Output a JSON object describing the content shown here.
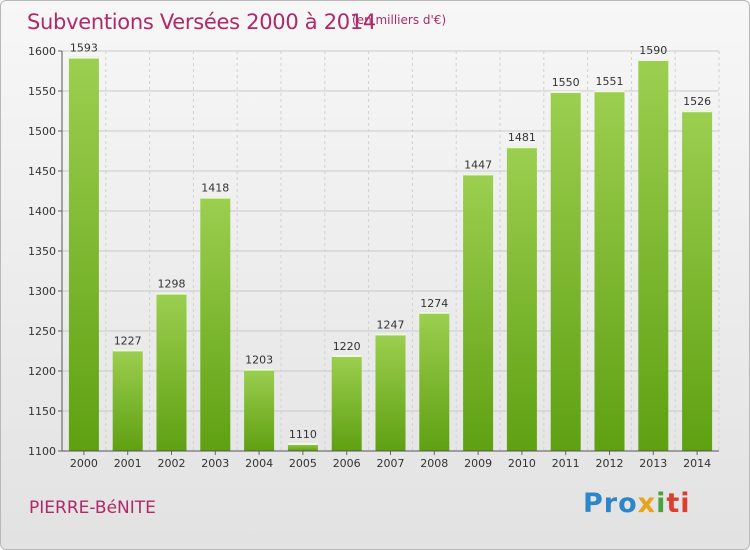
{
  "header": {
    "title": "Subventions Versées 2000 à 2014",
    "unit": "(en milliers d'€)"
  },
  "footer": {
    "place": "PIERRE-BéNITE",
    "logo": [
      "Pro",
      "x",
      "i",
      "ti"
    ]
  },
  "colors": {
    "title": "#b02868",
    "bar_top": "#9ccf50",
    "bar_bottom": "#5fa012"
  },
  "chart_data": {
    "type": "bar",
    "title": "Subventions Versées 2000 à 2014",
    "subtitle": "(en milliers d'€)",
    "xlabel": "",
    "ylabel": "",
    "categories": [
      "2000",
      "2001",
      "2002",
      "2003",
      "2004",
      "2005",
      "2006",
      "2007",
      "2008",
      "2009",
      "2010",
      "2011",
      "2012",
      "2013",
      "2014"
    ],
    "values": [
      1593,
      1227,
      1298,
      1418,
      1203,
      1110,
      1220,
      1247,
      1274,
      1447,
      1481,
      1550,
      1551,
      1590,
      1526
    ],
    "ylim": [
      1100,
      1600
    ],
    "yticks": [
      1100,
      1150,
      1200,
      1250,
      1300,
      1350,
      1400,
      1450,
      1500,
      1550,
      1600
    ],
    "grid": true
  }
}
